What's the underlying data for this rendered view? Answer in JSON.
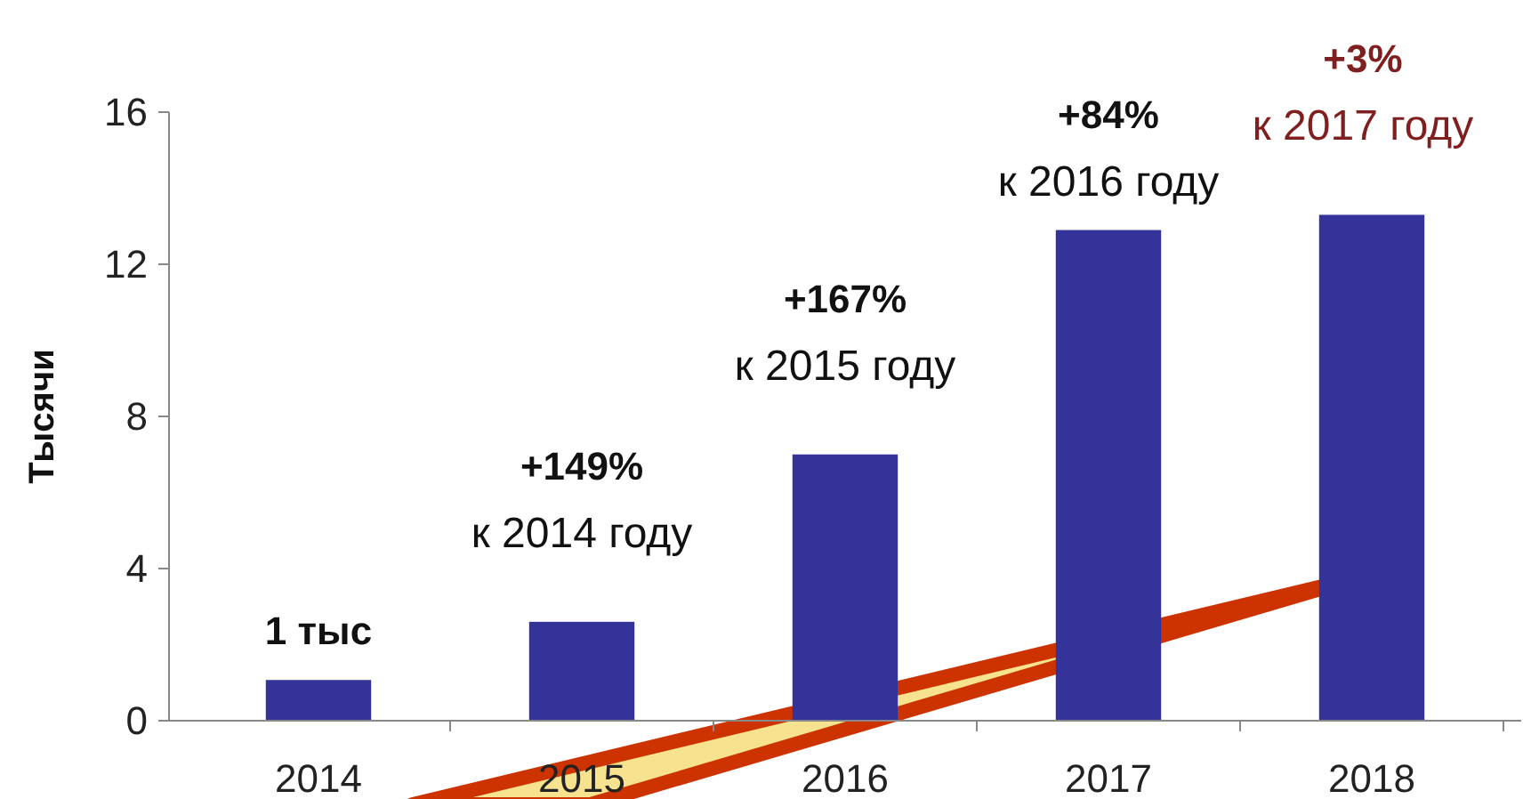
{
  "chart_data": {
    "type": "bar",
    "ylabel": "Тысячи",
    "categories": [
      "2014",
      "2015",
      "2016",
      "2017",
      "2018"
    ],
    "values": [
      1.07,
      2.6,
      7.0,
      12.9,
      13.3
    ],
    "color": "#333399",
    "ylim": [
      0,
      16
    ],
    "yticks": [
      0,
      4,
      8,
      12,
      16
    ],
    "grid": false,
    "annotations": [
      "1 тыс",
      "+149%",
      "к 2014 году",
      "+167%",
      "к 2015 году",
      "+84%",
      "к 2016 году",
      "+3%",
      "к 2017 году"
    ]
  }
}
